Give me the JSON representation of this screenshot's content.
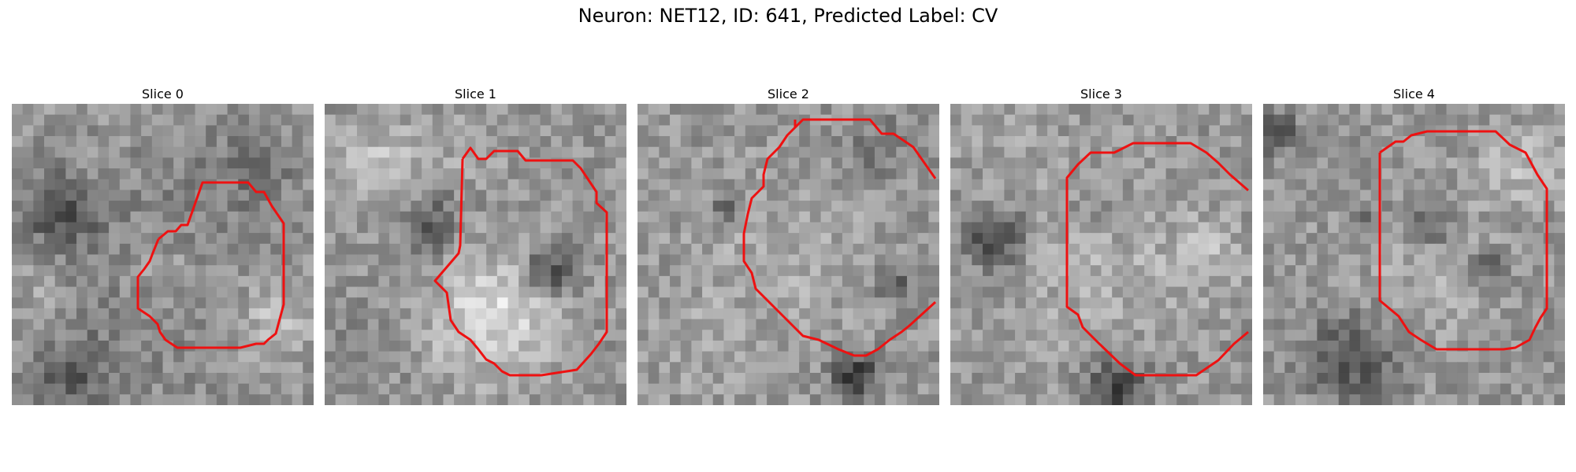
{
  "figure": {
    "title": "Neuron: NET12, ID: 641, Predicted Label: CV",
    "panels": [
      {
        "title": "Slice 0"
      },
      {
        "title": "Slice 1"
      },
      {
        "title": "Slice 2"
      },
      {
        "title": "Slice 3"
      },
      {
        "title": "Slice 4"
      }
    ],
    "contour_color": "#ee1111",
    "colormap": "grayscale"
  }
}
